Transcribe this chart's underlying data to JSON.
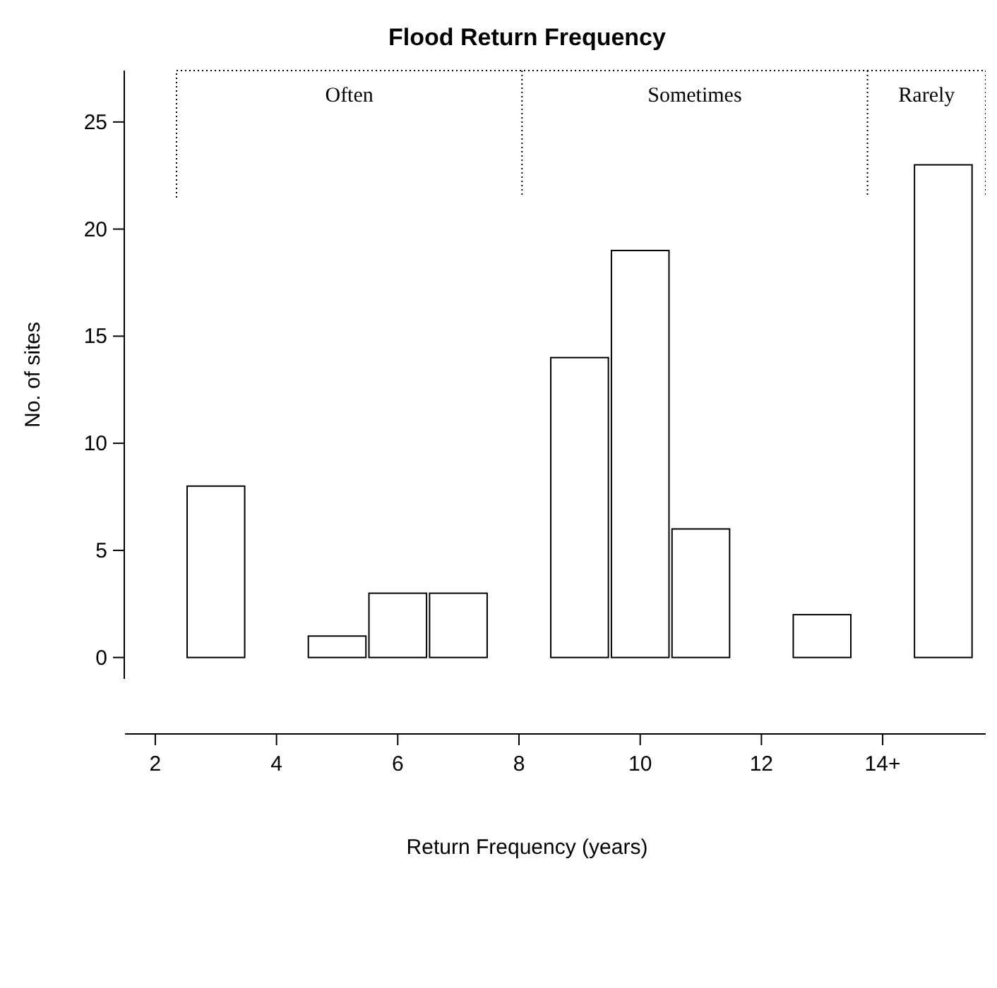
{
  "chart_data": {
    "type": "bar",
    "title": "Flood Return Frequency",
    "xlabel": "Return Frequency (years)",
    "ylabel": "No. of sites",
    "x": [
      3,
      5,
      6,
      7,
      9,
      10,
      11,
      13,
      15
    ],
    "values": [
      8,
      1,
      3,
      3,
      14,
      19,
      6,
      2,
      23
    ],
    "color": "#ffffff",
    "xlim": [
      1.5,
      15.7
    ],
    "xticks": [
      2,
      4,
      6,
      8,
      10,
      12,
      {
        "value": 14,
        "label": "14+"
      }
    ],
    "ylim": [
      -1,
      27.4
    ],
    "yticks": [
      0,
      5,
      10,
      15,
      20,
      25
    ],
    "annotations": [
      "Often",
      "Sometimes",
      "Rarely"
    ],
    "grid": false
  }
}
